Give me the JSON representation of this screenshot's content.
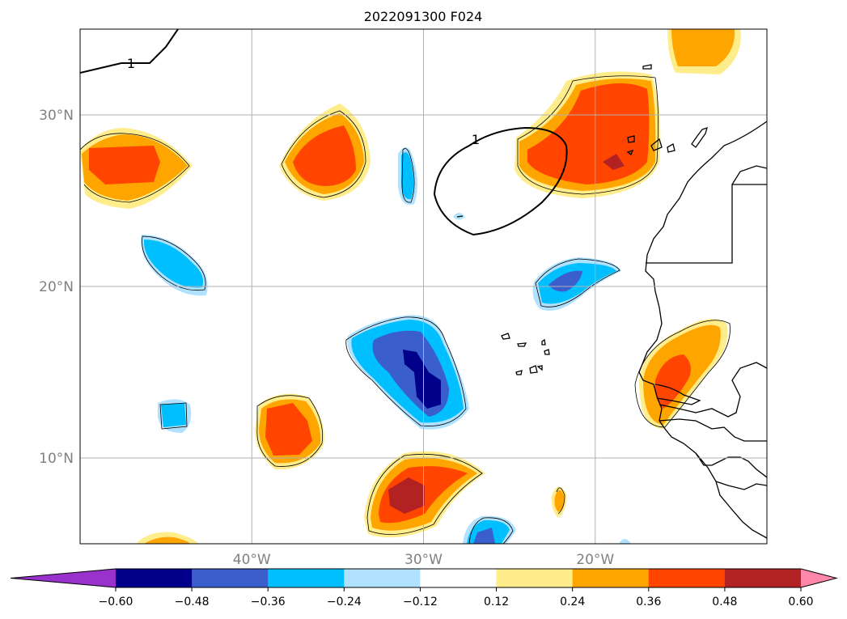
{
  "title": "2022091300 F024",
  "map": {
    "lon_range": [
      -50,
      -10
    ],
    "lat_range": [
      5,
      35
    ],
    "lon_ticks": [
      {
        "value": -40,
        "label": "40°W"
      },
      {
        "value": -30,
        "label": "30°W"
      },
      {
        "value": -20,
        "label": "20°W"
      }
    ],
    "lat_ticks": [
      {
        "value": 10,
        "label": "10°N"
      },
      {
        "value": 20,
        "label": "20°N"
      },
      {
        "value": 30,
        "label": "30°N"
      }
    ],
    "grid": true,
    "contour_label": "1",
    "colors": {
      "land_outline": "#000000",
      "grid": "#b0b0b0"
    }
  },
  "colorbar": {
    "extend": "both",
    "levels": [
      -0.6,
      -0.48,
      -0.36,
      -0.24,
      -0.12,
      0.12,
      0.24,
      0.36,
      0.48,
      0.6
    ],
    "tick_labels": [
      "−0.60",
      "−0.48",
      "−0.36",
      "−0.24",
      "−0.12",
      "0.12",
      "0.24",
      "0.36",
      "0.48",
      "0.60"
    ],
    "colors": [
      "#9932cc",
      "#00008b",
      "#3a5fcd",
      "#00bfff",
      "#b0e2ff",
      "#ffffff",
      "#ffec8b",
      "#ffa500",
      "#ff4500",
      "#b22222",
      "#ff88aa"
    ]
  }
}
